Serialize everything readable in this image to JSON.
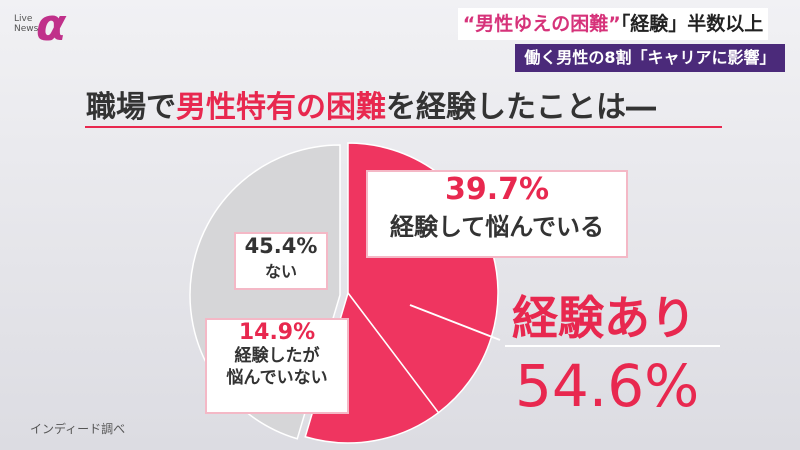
{
  "header": {
    "logo_text": "Live\nNews",
    "logo_mark": "α",
    "headline": [
      "“男性ゆえの困難”",
      "「経験」半数以上"
    ],
    "subheadline": "働く男性の8割「キャリアに影響」"
  },
  "chart_data": {
    "type": "pie",
    "title": [
      "職場で",
      "男性特有の困難",
      "を経験したことは―"
    ],
    "categories": [
      "経験して悩んでいる",
      "経験したが\n悩んでいない",
      "ない"
    ],
    "values": [
      39.7,
      14.9,
      45.4
    ],
    "value_labels": [
      "39.7%",
      "14.9%",
      "45.4%"
    ],
    "colors": [
      "#ef3560",
      "#ef3560",
      "#d6d6d8"
    ],
    "annotation": {
      "label": "経験あり",
      "value": 54.6,
      "value_label": "54.6%"
    },
    "source": "インディード調べ"
  }
}
